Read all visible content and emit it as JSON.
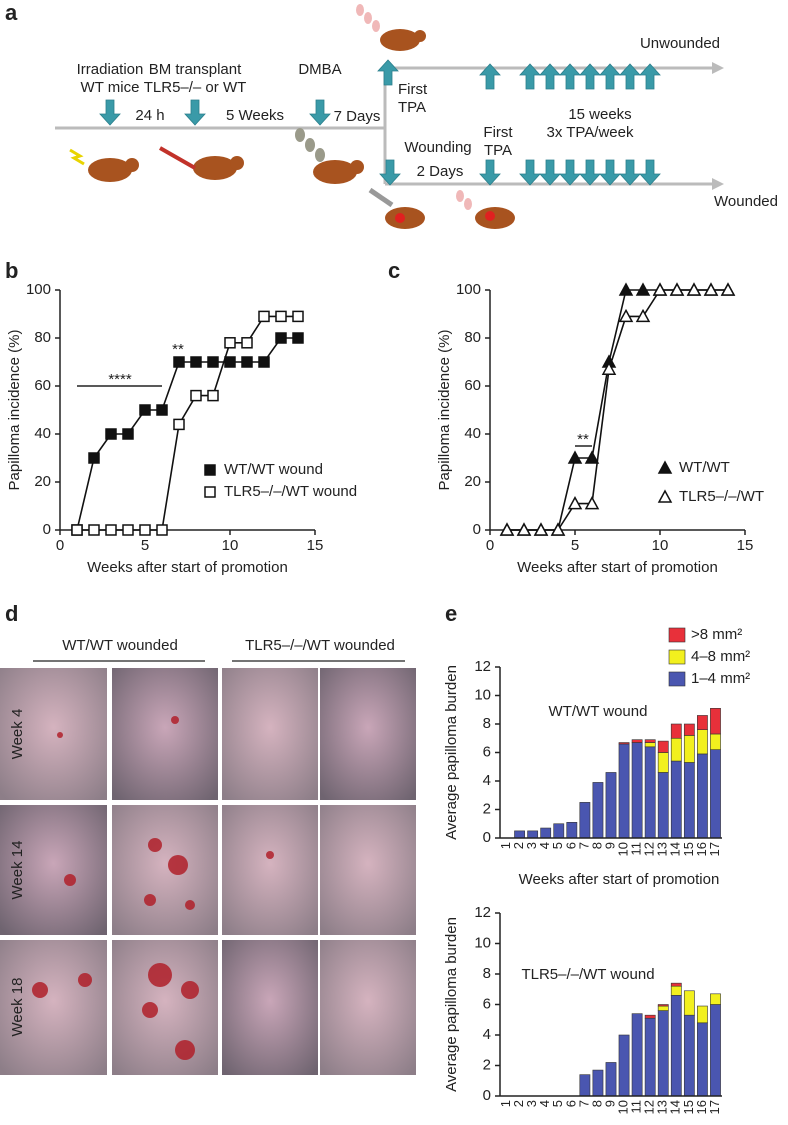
{
  "panel_labels": [
    "a",
    "b",
    "c",
    "d",
    "e"
  ],
  "panel_a": {
    "labels": [
      "Irradiation",
      "WT mice",
      "BM transplant",
      "TLR5–/– or WT",
      "24 h",
      "5 Weeks",
      "DMBA",
      "7 Days",
      "First",
      "TPA",
      "Unwounded",
      "15 weeks",
      "3x TPA/week",
      "Wounding",
      "First",
      "TPA",
      "2 Days",
      "Wounded"
    ]
  },
  "panel_d": {
    "columns": [
      "WT/WT wounded",
      "TLR5–/–/WT wounded"
    ],
    "rows": [
      "Week 4",
      "Week 14",
      "Week 18"
    ]
  },
  "chart_data": [
    {
      "type": "line",
      "xlabel": "Weeks after start of promotion",
      "ylabel": "Papilloma incidence (%)",
      "x": [
        1,
        2,
        3,
        4,
        5,
        6,
        7,
        8,
        9,
        10,
        11,
        12,
        13,
        14
      ],
      "series": [
        {
          "name": "WT/WT wound",
          "color": "#111111",
          "marker": "square",
          "filled": true,
          "values": [
            0,
            30,
            40,
            40,
            50,
            50,
            70,
            70,
            70,
            70,
            70,
            70,
            80,
            80
          ]
        },
        {
          "name": "TLR5–/–/WT wound",
          "color": "#111111",
          "marker": "square",
          "filled": false,
          "values": [
            0,
            0,
            0,
            0,
            0,
            0,
            44,
            56,
            56,
            78,
            78,
            89,
            89,
            89
          ]
        }
      ],
      "annotations": [
        "****",
        "**"
      ],
      "xlim": [
        0,
        15
      ],
      "xticks": [
        0,
        5,
        10,
        15
      ],
      "ylim": [
        0,
        100
      ],
      "yticks": [
        0,
        20,
        40,
        60,
        80,
        100
      ],
      "grid": false
    },
    {
      "type": "line",
      "xlabel": "Weeks after start of promotion",
      "ylabel": "Papilloma incidence (%)",
      "x": [
        1,
        2,
        3,
        4,
        5,
        6,
        7,
        8,
        9,
        10,
        11,
        12,
        13,
        14
      ],
      "series": [
        {
          "name": "WT/WT",
          "color": "#111111",
          "marker": "triangle",
          "filled": true,
          "values": [
            0,
            0,
            0,
            0,
            30,
            30,
            70,
            100,
            100,
            100,
            100,
            100,
            100,
            100
          ]
        },
        {
          "name": "TLR5–/–/WT",
          "color": "#111111",
          "marker": "triangle",
          "filled": false,
          "values": [
            0,
            0,
            0,
            0,
            11,
            11,
            67,
            89,
            89,
            100,
            100,
            100,
            100,
            100
          ]
        }
      ],
      "annotations": [
        "**"
      ],
      "xlim": [
        0,
        15
      ],
      "xticks": [
        0,
        5,
        10,
        15
      ],
      "ylim": [
        0,
        100
      ],
      "yticks": [
        0,
        20,
        40,
        60,
        80,
        100
      ],
      "grid": false
    },
    {
      "type": "stacked_bar",
      "title": "WT/WT wound",
      "xlabel": "Weeks after start of promotion",
      "ylabel": "Average papilloma burden",
      "categories": [
        "1",
        "2",
        "3",
        "4",
        "5",
        "6",
        "7",
        "8",
        "9",
        "10",
        "11",
        "12",
        "13",
        "14",
        "15",
        "16",
        "17"
      ],
      "series": [
        {
          "name": "1–4 mm²",
          "color": "#4a56b0",
          "values": [
            0,
            0.5,
            0.5,
            0.7,
            1.0,
            1.1,
            2.5,
            3.9,
            4.6,
            6.6,
            6.7,
            6.4,
            4.6,
            5.4,
            5.3,
            5.9,
            6.2
          ]
        },
        {
          "name": "4–8 mm²",
          "color": "#f2f01e",
          "values": [
            0,
            0,
            0,
            0,
            0,
            0,
            0,
            0,
            0,
            0,
            0,
            0.3,
            1.4,
            1.6,
            1.9,
            1.7,
            1.1
          ]
        },
        {
          "name": ">8 mm²",
          "color": "#e8303a",
          "values": [
            0,
            0,
            0,
            0,
            0,
            0,
            0,
            0,
            0,
            0.1,
            0.2,
            0.2,
            0.8,
            1.0,
            0.8,
            1.0,
            1.8
          ]
        }
      ],
      "legend": true,
      "ylim": [
        0,
        12
      ],
      "yticks": [
        0,
        2,
        4,
        6,
        8,
        10,
        12
      ],
      "grid": false
    },
    {
      "type": "stacked_bar",
      "title": "TLR5–/–/WT wound",
      "xlabel": "Weeks after start of promotion",
      "ylabel": "Average papilloma burden",
      "categories": [
        "1",
        "2",
        "3",
        "4",
        "5",
        "6",
        "7",
        "8",
        "9",
        "10",
        "11",
        "12",
        "13",
        "14",
        "15",
        "16",
        "17"
      ],
      "series": [
        {
          "name": "1–4 mm²",
          "color": "#4a56b0",
          "values": [
            0,
            0,
            0,
            0,
            0,
            0,
            1.4,
            1.7,
            2.2,
            4.0,
            5.4,
            5.1,
            5.6,
            6.6,
            5.3,
            4.8,
            6.0
          ]
        },
        {
          "name": "4–8 mm²",
          "color": "#f2f01e",
          "values": [
            0,
            0,
            0,
            0,
            0,
            0,
            0,
            0,
            0,
            0,
            0,
            0,
            0.3,
            0.6,
            1.6,
            1.1,
            0.7
          ]
        },
        {
          "name": ">8 mm²",
          "color": "#e8303a",
          "values": [
            0,
            0,
            0,
            0,
            0,
            0,
            0,
            0,
            0,
            0,
            0,
            0.2,
            0.1,
            0.2,
            0,
            0,
            0
          ]
        }
      ],
      "legend": false,
      "ylim": [
        0,
        12
      ],
      "yticks": [
        0,
        2,
        4,
        6,
        8,
        10,
        12
      ],
      "grid": false
    }
  ]
}
